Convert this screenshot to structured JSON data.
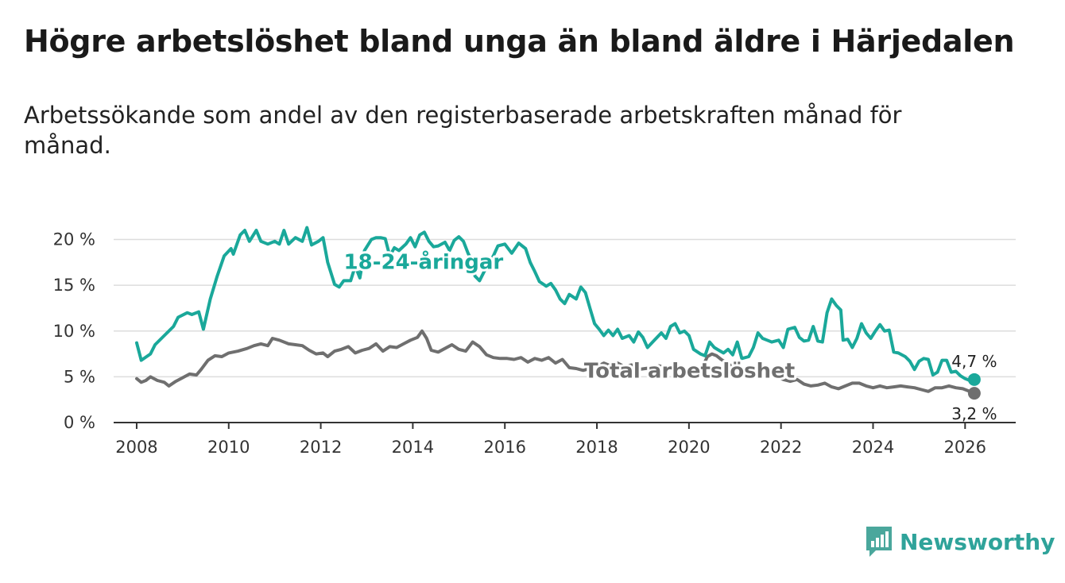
{
  "header": {
    "title": "Högre arbetslöshet bland unga än bland äldre i Härjedalen",
    "subtitle": "Arbetssökande som andel av den registerbaserade arbetskraften månad för månad."
  },
  "brand": {
    "name": "Newsworthy",
    "icon": "newsworthy-logo-icon",
    "color": "#4aa79c"
  },
  "chart_data": {
    "type": "line",
    "title": "Högre arbetslöshet bland unga än bland äldre i Härjedalen",
    "subtitle": "Arbetssökande som andel av den registerbaserade arbetskraften månad för månad.",
    "xlabel": "",
    "ylabel": "",
    "xlim": [
      2007.5,
      2027.1
    ],
    "ylim": [
      0,
      21
    ],
    "grid": true,
    "legend": "inline",
    "x_ticks": [
      2008,
      2010,
      2012,
      2014,
      2016,
      2018,
      2020,
      2022,
      2024,
      2026
    ],
    "y_ticks": [
      {
        "value": 0,
        "label": "0 %"
      },
      {
        "value": 5,
        "label": "5 %"
      },
      {
        "value": 10,
        "label": "10 %"
      },
      {
        "value": 15,
        "label": "15 %"
      },
      {
        "value": 20,
        "label": "20 %"
      }
    ],
    "series": [
      {
        "name": "18-24-åringar",
        "label": "18-24-åringar",
        "color": "#1aa89a",
        "end_label": "4,7 %",
        "points": [
          [
            2008.0,
            8.7
          ],
          [
            2008.1,
            6.8
          ],
          [
            2008.3,
            7.5
          ],
          [
            2008.4,
            8.5
          ],
          [
            2008.6,
            9.5
          ],
          [
            2008.8,
            10.5
          ],
          [
            2008.9,
            11.5
          ],
          [
            2009.1,
            12.0
          ],
          [
            2009.2,
            11.8
          ],
          [
            2009.35,
            12.1
          ],
          [
            2009.45,
            10.2
          ],
          [
            2009.6,
            13.5
          ],
          [
            2009.75,
            16.0
          ],
          [
            2009.9,
            18.2
          ],
          [
            2010.05,
            19.0
          ],
          [
            2010.1,
            18.4
          ],
          [
            2010.25,
            20.5
          ],
          [
            2010.35,
            21.0
          ],
          [
            2010.45,
            19.8
          ],
          [
            2010.6,
            21.0
          ],
          [
            2010.7,
            19.8
          ],
          [
            2010.85,
            19.5
          ],
          [
            2011.0,
            19.8
          ],
          [
            2011.1,
            19.5
          ],
          [
            2011.2,
            21.0
          ],
          [
            2011.3,
            19.5
          ],
          [
            2011.45,
            20.2
          ],
          [
            2011.6,
            19.8
          ],
          [
            2011.7,
            21.3
          ],
          [
            2011.8,
            19.4
          ],
          [
            2011.95,
            19.8
          ],
          [
            2012.05,
            20.2
          ],
          [
            2012.15,
            17.5
          ],
          [
            2012.3,
            15.1
          ],
          [
            2012.4,
            14.8
          ],
          [
            2012.5,
            15.5
          ],
          [
            2012.65,
            15.5
          ],
          [
            2012.75,
            17.1
          ],
          [
            2012.85,
            15.8
          ],
          [
            2012.95,
            18.8
          ],
          [
            2013.1,
            20.0
          ],
          [
            2013.2,
            20.2
          ],
          [
            2013.3,
            20.2
          ],
          [
            2013.4,
            20.1
          ],
          [
            2013.5,
            18.2
          ],
          [
            2013.6,
            19.1
          ],
          [
            2013.7,
            18.8
          ],
          [
            2013.85,
            19.5
          ],
          [
            2013.95,
            20.2
          ],
          [
            2014.05,
            19.2
          ],
          [
            2014.15,
            20.5
          ],
          [
            2014.25,
            20.8
          ],
          [
            2014.35,
            19.8
          ],
          [
            2014.45,
            19.2
          ],
          [
            2014.55,
            19.3
          ],
          [
            2014.7,
            19.7
          ],
          [
            2014.8,
            18.8
          ],
          [
            2014.9,
            19.9
          ],
          [
            2015.0,
            20.3
          ],
          [
            2015.1,
            19.8
          ],
          [
            2015.2,
            18.5
          ],
          [
            2015.3,
            17.5
          ],
          [
            2015.35,
            16.0
          ],
          [
            2015.45,
            15.5
          ],
          [
            2015.6,
            17.0
          ],
          [
            2015.75,
            18.2
          ],
          [
            2015.85,
            19.3
          ],
          [
            2016.0,
            19.5
          ],
          [
            2016.15,
            18.5
          ],
          [
            2016.3,
            19.6
          ],
          [
            2016.45,
            19.0
          ],
          [
            2016.55,
            17.5
          ],
          [
            2016.65,
            16.5
          ],
          [
            2016.75,
            15.4
          ],
          [
            2016.9,
            14.9
          ],
          [
            2017.0,
            15.2
          ],
          [
            2017.1,
            14.5
          ],
          [
            2017.2,
            13.5
          ],
          [
            2017.3,
            13.0
          ],
          [
            2017.4,
            14.0
          ],
          [
            2017.55,
            13.5
          ],
          [
            2017.65,
            14.8
          ],
          [
            2017.75,
            14.2
          ],
          [
            2017.85,
            12.5
          ],
          [
            2017.95,
            10.8
          ],
          [
            2018.05,
            10.2
          ],
          [
            2018.15,
            9.5
          ],
          [
            2018.25,
            10.1
          ],
          [
            2018.35,
            9.5
          ],
          [
            2018.45,
            10.2
          ],
          [
            2018.55,
            9.2
          ],
          [
            2018.7,
            9.5
          ],
          [
            2018.8,
            8.8
          ],
          [
            2018.9,
            9.9
          ],
          [
            2019.0,
            9.3
          ],
          [
            2019.1,
            8.2
          ],
          [
            2019.25,
            9.0
          ],
          [
            2019.4,
            9.8
          ],
          [
            2019.5,
            9.2
          ],
          [
            2019.6,
            10.5
          ],
          [
            2019.7,
            10.8
          ],
          [
            2019.8,
            9.8
          ],
          [
            2019.9,
            10.0
          ],
          [
            2020.0,
            9.5
          ],
          [
            2020.1,
            8.0
          ],
          [
            2020.25,
            7.5
          ],
          [
            2020.35,
            7.3
          ],
          [
            2020.45,
            8.8
          ],
          [
            2020.55,
            8.2
          ],
          [
            2020.65,
            7.9
          ],
          [
            2020.75,
            7.6
          ],
          [
            2020.85,
            8.0
          ],
          [
            2020.95,
            7.4
          ],
          [
            2021.05,
            8.8
          ],
          [
            2021.15,
            7.0
          ],
          [
            2021.3,
            7.2
          ],
          [
            2021.4,
            8.2
          ],
          [
            2021.5,
            9.8
          ],
          [
            2021.6,
            9.2
          ],
          [
            2021.7,
            9.0
          ],
          [
            2021.8,
            8.8
          ],
          [
            2021.95,
            9.0
          ],
          [
            2022.05,
            8.2
          ],
          [
            2022.15,
            10.2
          ],
          [
            2022.3,
            10.4
          ],
          [
            2022.4,
            9.3
          ],
          [
            2022.5,
            8.9
          ],
          [
            2022.6,
            9.0
          ],
          [
            2022.7,
            10.5
          ],
          [
            2022.8,
            8.9
          ],
          [
            2022.9,
            8.8
          ],
          [
            2023.0,
            12.0
          ],
          [
            2023.1,
            13.5
          ],
          [
            2023.2,
            12.8
          ],
          [
            2023.3,
            12.3
          ],
          [
            2023.35,
            9.0
          ],
          [
            2023.45,
            9.1
          ],
          [
            2023.55,
            8.2
          ],
          [
            2023.65,
            9.2
          ],
          [
            2023.75,
            10.8
          ],
          [
            2023.85,
            9.8
          ],
          [
            2023.95,
            9.2
          ],
          [
            2024.05,
            10.0
          ],
          [
            2024.15,
            10.7
          ],
          [
            2024.25,
            10.0
          ],
          [
            2024.35,
            10.1
          ],
          [
            2024.45,
            7.7
          ],
          [
            2024.55,
            7.6
          ],
          [
            2024.7,
            7.2
          ],
          [
            2024.8,
            6.7
          ],
          [
            2024.9,
            5.8
          ],
          [
            2025.0,
            6.7
          ],
          [
            2025.1,
            7.0
          ],
          [
            2025.2,
            6.9
          ],
          [
            2025.3,
            5.2
          ],
          [
            2025.4,
            5.5
          ],
          [
            2025.5,
            6.8
          ],
          [
            2025.6,
            6.8
          ],
          [
            2025.7,
            5.5
          ],
          [
            2025.8,
            5.6
          ],
          [
            2025.9,
            5.1
          ],
          [
            2026.0,
            4.8
          ],
          [
            2026.1,
            4.6
          ],
          [
            2026.2,
            4.7
          ]
        ]
      },
      {
        "name": "Total arbetslöshet",
        "label": "Total arbetslöshet",
        "color": "#6f6f6f",
        "end_label": "3,2 %",
        "points": [
          [
            2008.0,
            4.8
          ],
          [
            2008.1,
            4.4
          ],
          [
            2008.2,
            4.6
          ],
          [
            2008.3,
            5.0
          ],
          [
            2008.45,
            4.6
          ],
          [
            2008.6,
            4.4
          ],
          [
            2008.7,
            4.0
          ],
          [
            2008.85,
            4.5
          ],
          [
            2009.0,
            4.9
          ],
          [
            2009.15,
            5.3
          ],
          [
            2009.3,
            5.2
          ],
          [
            2009.4,
            5.8
          ],
          [
            2009.55,
            6.8
          ],
          [
            2009.7,
            7.3
          ],
          [
            2009.85,
            7.2
          ],
          [
            2010.0,
            7.6
          ],
          [
            2010.2,
            7.8
          ],
          [
            2010.4,
            8.1
          ],
          [
            2010.55,
            8.4
          ],
          [
            2010.7,
            8.6
          ],
          [
            2010.85,
            8.4
          ],
          [
            2010.95,
            9.2
          ],
          [
            2011.1,
            9.0
          ],
          [
            2011.3,
            8.6
          ],
          [
            2011.45,
            8.5
          ],
          [
            2011.6,
            8.4
          ],
          [
            2011.75,
            7.9
          ],
          [
            2011.9,
            7.5
          ],
          [
            2012.05,
            7.6
          ],
          [
            2012.15,
            7.2
          ],
          [
            2012.3,
            7.8
          ],
          [
            2012.45,
            8.0
          ],
          [
            2012.6,
            8.3
          ],
          [
            2012.75,
            7.6
          ],
          [
            2012.9,
            7.9
          ],
          [
            2013.05,
            8.1
          ],
          [
            2013.2,
            8.6
          ],
          [
            2013.35,
            7.8
          ],
          [
            2013.5,
            8.3
          ],
          [
            2013.65,
            8.2
          ],
          [
            2013.8,
            8.6
          ],
          [
            2013.95,
            9.0
          ],
          [
            2014.1,
            9.3
          ],
          [
            2014.2,
            10.0
          ],
          [
            2014.3,
            9.2
          ],
          [
            2014.4,
            7.9
          ],
          [
            2014.55,
            7.7
          ],
          [
            2014.7,
            8.1
          ],
          [
            2014.85,
            8.5
          ],
          [
            2015.0,
            8.0
          ],
          [
            2015.15,
            7.8
          ],
          [
            2015.3,
            8.8
          ],
          [
            2015.45,
            8.3
          ],
          [
            2015.6,
            7.4
          ],
          [
            2015.75,
            7.1
          ],
          [
            2015.9,
            7.0
          ],
          [
            2016.05,
            7.0
          ],
          [
            2016.2,
            6.9
          ],
          [
            2016.35,
            7.1
          ],
          [
            2016.5,
            6.6
          ],
          [
            2016.65,
            7.0
          ],
          [
            2016.8,
            6.8
          ],
          [
            2016.95,
            7.1
          ],
          [
            2017.1,
            6.5
          ],
          [
            2017.25,
            6.9
          ],
          [
            2017.4,
            6.0
          ],
          [
            2017.55,
            5.9
          ],
          [
            2017.7,
            5.7
          ],
          [
            2017.85,
            5.9
          ],
          [
            2018.0,
            6.1
          ],
          [
            2018.15,
            6.5
          ],
          [
            2018.3,
            6.2
          ],
          [
            2018.45,
            6.5
          ],
          [
            2018.6,
            6.1
          ],
          [
            2018.75,
            6.3
          ],
          [
            2018.9,
            5.8
          ],
          [
            2019.05,
            5.9
          ],
          [
            2019.2,
            6.0
          ],
          [
            2019.35,
            6.2
          ],
          [
            2019.5,
            6.0
          ],
          [
            2019.65,
            5.9
          ],
          [
            2019.8,
            6.1
          ],
          [
            2019.95,
            5.7
          ],
          [
            2020.1,
            5.8
          ],
          [
            2020.25,
            5.6
          ],
          [
            2020.4,
            7.2
          ],
          [
            2020.5,
            7.5
          ],
          [
            2020.6,
            7.3
          ],
          [
            2020.7,
            6.9
          ],
          [
            2020.85,
            6.4
          ],
          [
            2021.0,
            6.0
          ],
          [
            2021.15,
            5.8
          ],
          [
            2021.3,
            5.7
          ],
          [
            2021.45,
            5.6
          ],
          [
            2021.6,
            5.8
          ],
          [
            2021.75,
            5.3
          ],
          [
            2021.9,
            5.0
          ],
          [
            2022.05,
            4.7
          ],
          [
            2022.2,
            4.5
          ],
          [
            2022.35,
            4.7
          ],
          [
            2022.5,
            4.2
          ],
          [
            2022.65,
            4.0
          ],
          [
            2022.8,
            4.1
          ],
          [
            2022.95,
            4.3
          ],
          [
            2023.1,
            3.9
          ],
          [
            2023.25,
            3.7
          ],
          [
            2023.4,
            4.0
          ],
          [
            2023.55,
            4.3
          ],
          [
            2023.7,
            4.3
          ],
          [
            2023.85,
            4.0
          ],
          [
            2024.0,
            3.8
          ],
          [
            2024.15,
            4.0
          ],
          [
            2024.3,
            3.8
          ],
          [
            2024.45,
            3.9
          ],
          [
            2024.6,
            4.0
          ],
          [
            2024.75,
            3.9
          ],
          [
            2024.9,
            3.8
          ],
          [
            2025.05,
            3.6
          ],
          [
            2025.2,
            3.4
          ],
          [
            2025.35,
            3.8
          ],
          [
            2025.5,
            3.8
          ],
          [
            2025.65,
            4.0
          ],
          [
            2025.8,
            3.8
          ],
          [
            2025.95,
            3.7
          ],
          [
            2026.1,
            3.4
          ],
          [
            2026.2,
            3.2
          ]
        ]
      }
    ]
  }
}
